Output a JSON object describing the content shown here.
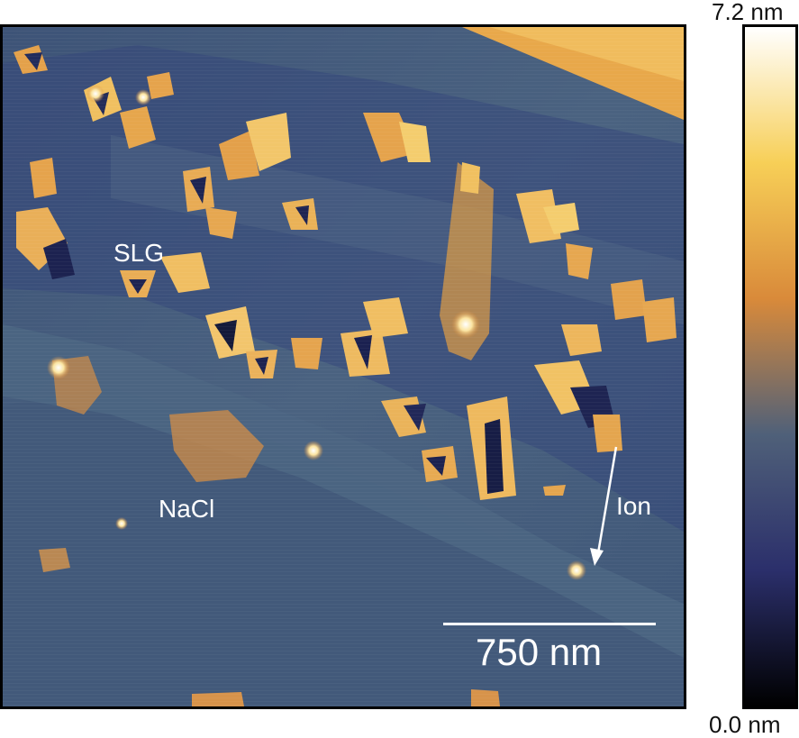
{
  "image": {
    "labels": {
      "slg": "SLG",
      "nacl": "NaCl",
      "ion": "Ion"
    },
    "scale_bar": "750 nm"
  },
  "colorbar": {
    "max_label": "7.2 nm",
    "min_label": "0.0 nm",
    "colors": [
      "#ffffff",
      "#f7cf57",
      "#d98a3a",
      "#4f6079",
      "#2b2f6b",
      "#000000"
    ]
  }
}
